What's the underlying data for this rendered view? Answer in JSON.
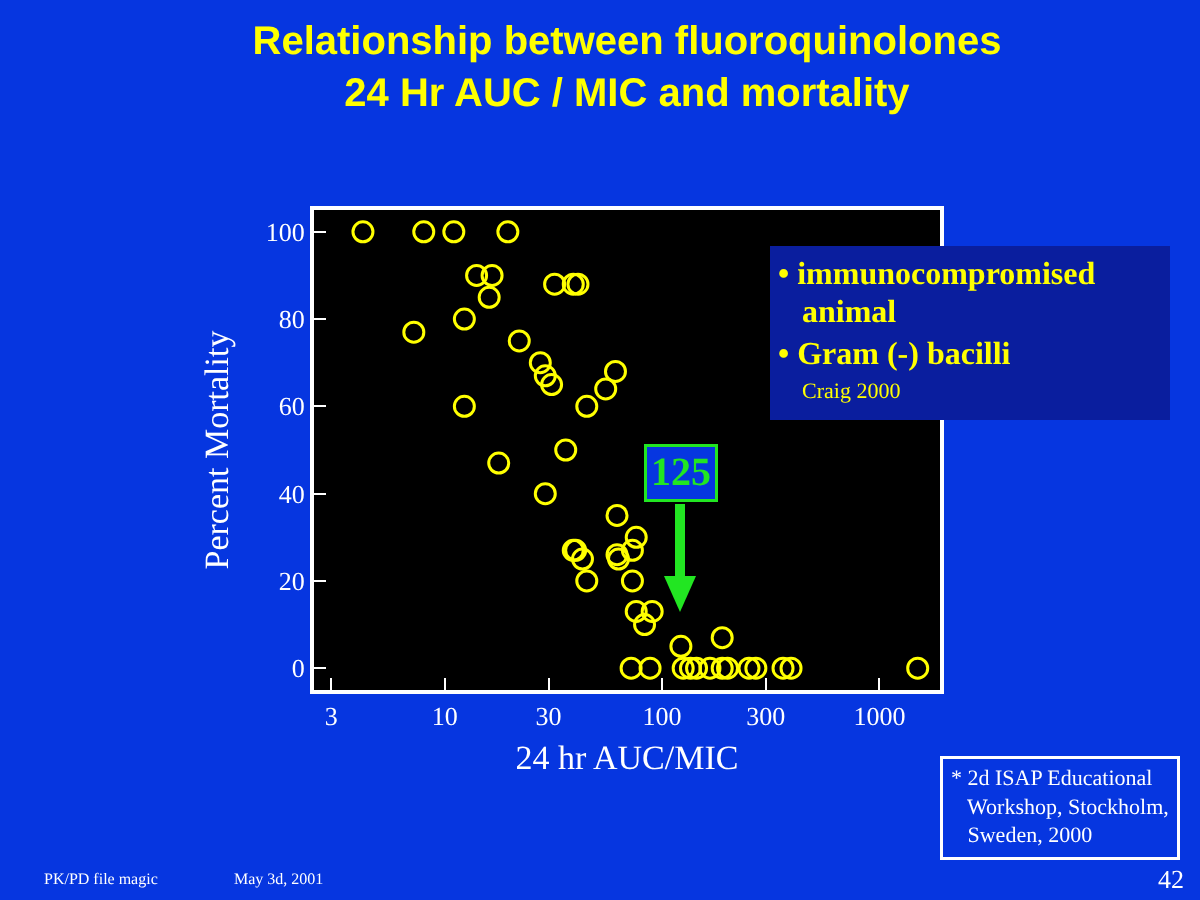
{
  "chart_data": {
    "type": "scatter",
    "title": "Relationship between fluoroquinolones\n24 Hr AUC / MIC and mortality",
    "xlabel": "24 hr AUC/MIC",
    "ylabel": "Percent Mortality",
    "x": [
      4.2,
      8,
      11,
      19.5,
      14,
      16.5,
      16,
      12.3,
      7.2,
      22,
      27.5,
      29,
      31,
      12.3,
      36,
      17.7,
      29,
      39,
      32,
      39,
      41,
      61,
      55,
      45,
      62,
      76,
      40,
      43,
      62,
      63,
      73,
      45,
      73,
      76,
      90,
      83,
      122,
      189,
      72,
      88,
      125,
      135,
      144,
      166,
      189,
      200,
      251,
      270,
      360,
      392,
      1500
    ],
    "values": [
      100,
      100,
      100,
      100,
      90,
      90,
      85,
      80,
      77,
      75,
      70,
      67,
      65,
      60,
      50,
      47,
      40,
      27,
      88,
      88,
      88,
      68,
      64,
      60,
      35,
      30,
      27,
      25,
      26,
      25,
      27,
      20,
      20,
      13,
      13,
      10,
      5,
      7,
      0,
      0,
      0,
      0,
      0,
      0,
      0,
      0,
      0,
      0,
      0,
      0,
      0
    ],
    "color": "#ffff00",
    "marker": "circle",
    "log": "x",
    "grid": false,
    "xlim": [
      2.5,
      1900
    ],
    "xticks": [
      3,
      10,
      30,
      100,
      300,
      1000
    ],
    "ylim": [
      -5,
      105
    ],
    "yticks": [
      0,
      20,
      40,
      60,
      80,
      100
    ],
    "annotations": [
      "125",
      "• immunocompromised animal",
      "• Gram (-) bacilli",
      "Craig 2000",
      "* 2d ISAP Educational Workshop, Stockholm, Sweden, 2000",
      "PK/PD file magic",
      "May 3d, 2001",
      "42"
    ]
  }
}
